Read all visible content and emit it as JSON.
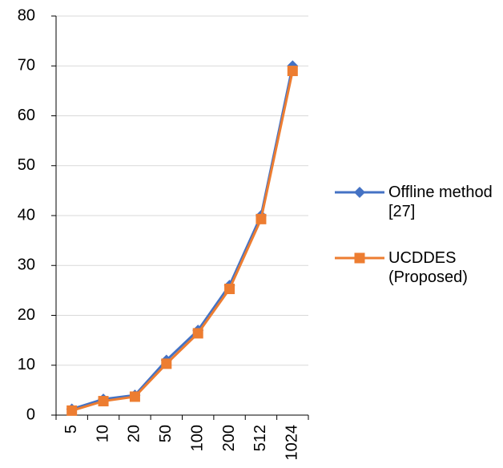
{
  "chart_data": {
    "type": "line",
    "categories": [
      "5",
      "10",
      "20",
      "50",
      "100",
      "200",
      "512",
      "1024"
    ],
    "series": [
      {
        "name": "Offline method [27]",
        "color": "#4472c4",
        "marker": "diamond",
        "values": [
          1.2,
          3.2,
          4,
          11,
          17,
          26,
          40,
          70
        ]
      },
      {
        "name": "UCDDES (Proposed)",
        "color": "#ed7d31",
        "marker": "square",
        "values": [
          0.9,
          2.8,
          3.7,
          10.3,
          16.4,
          25.3,
          39.3,
          69
        ]
      }
    ],
    "ylim": [
      0,
      80
    ],
    "yticks": [
      0,
      10,
      20,
      30,
      40,
      50,
      60,
      70,
      80
    ],
    "grid": true,
    "legend": "right"
  }
}
